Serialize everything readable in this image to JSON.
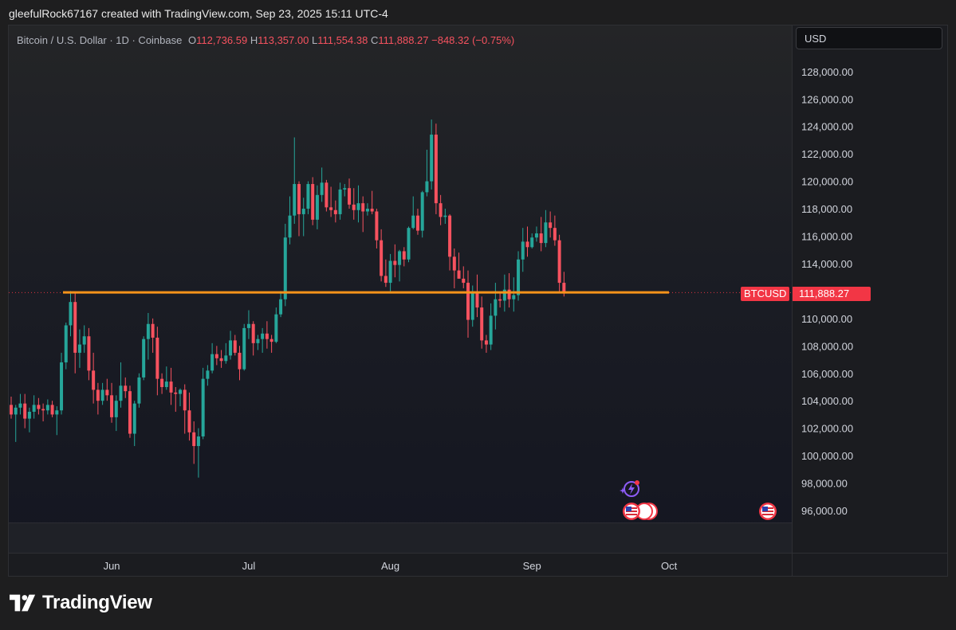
{
  "caption": "gleefulRock67167 created with TradingView.com, Sep 23, 2025 15:11 UTC-4",
  "legend": {
    "symbol": "Bitcoin / U.S. Dollar · 1D · Coinbase",
    "o_label": "O",
    "o_value": "112,736.59",
    "h_label": "H",
    "h_value": "113,357.00",
    "l_label": "L",
    "l_value": "111,554.38",
    "c_label": "C",
    "c_value": "111,888.27",
    "change": "−848.32 (−0.75%)"
  },
  "currency": "USD",
  "price_tag": {
    "symbol": "BTCUSD",
    "value": "111,888.27"
  },
  "brand": "TradingView",
  "colors": {
    "up": "#26a69a",
    "down": "#f7525f",
    "level": "#f7931a",
    "tag": "#f23645"
  },
  "icons": [
    "us-flag-icon",
    "lightning-event-icon"
  ],
  "chart_data": {
    "type": "candlestick",
    "symbol": "BTCUSD",
    "interval": "1D",
    "y_ticks": [
      "96,000.00",
      "98,000.00",
      "100,000.00",
      "102,000.00",
      "104,000.00",
      "106,000.00",
      "108,000.00",
      "110,000.00",
      "112,000.00",
      "114,000.00",
      "116,000.00",
      "118,000.00",
      "120,000.00",
      "122,000.00",
      "124,000.00",
      "126,000.00",
      "128,000.00"
    ],
    "x_ticks": [
      "Jun",
      "Jul",
      "Aug",
      "Sep",
      "Oct"
    ],
    "ylim": [
      94000,
      129500
    ],
    "horizontal_level": 111900,
    "last_price": 111888.27,
    "start_date": "2025-05-10",
    "candles": [
      [
        103700,
        104300,
        102700,
        103000
      ],
      [
        103000,
        103700,
        101000,
        103500
      ],
      [
        103500,
        104500,
        103000,
        103800
      ],
      [
        103800,
        104500,
        102000,
        102700
      ],
      [
        102700,
        103500,
        101700,
        103200
      ],
      [
        103200,
        104400,
        102700,
        103700
      ],
      [
        103700,
        104200,
        103000,
        103400
      ],
      [
        103400,
        103800,
        102500,
        103300
      ],
      [
        103300,
        104100,
        103000,
        103700
      ],
      [
        103700,
        104000,
        102800,
        103000
      ],
      [
        103000,
        103600,
        101500,
        103300
      ],
      [
        103300,
        107500,
        103000,
        106800
      ],
      [
        106800,
        109700,
        106300,
        109500
      ],
      [
        109500,
        112000,
        108700,
        111200
      ],
      [
        111200,
        111900,
        106000,
        107500
      ],
      [
        107500,
        109200,
        106400,
        108100
      ],
      [
        108100,
        109500,
        107500,
        108700
      ],
      [
        108700,
        109300,
        105500,
        106200
      ],
      [
        106200,
        107500,
        103800,
        104800
      ],
      [
        104800,
        105300,
        103000,
        104000
      ],
      [
        104000,
        105300,
        103700,
        104800
      ],
      [
        104800,
        105600,
        104000,
        104400
      ],
      [
        104400,
        105300,
        102400,
        102800
      ],
      [
        102800,
        104400,
        101800,
        104000
      ],
      [
        104000,
        106800,
        103500,
        105100
      ],
      [
        105100,
        105700,
        104200,
        104700
      ],
      [
        104700,
        105100,
        101300,
        101600
      ],
      [
        101600,
        104000,
        100700,
        103800
      ],
      [
        103800,
        106000,
        103500,
        105700
      ],
      [
        105700,
        108700,
        105500,
        108500
      ],
      [
        108500,
        110400,
        107000,
        109600
      ],
      [
        109600,
        110000,
        107500,
        108600
      ],
      [
        108600,
        109400,
        104400,
        105600
      ],
      [
        105600,
        106000,
        104500,
        105000
      ],
      [
        105000,
        106500,
        104800,
        105400
      ],
      [
        105400,
        106400,
        103700,
        104600
      ],
      [
        104600,
        105000,
        103200,
        104500
      ],
      [
        104500,
        104900,
        103600,
        104800
      ],
      [
        104800,
        105200,
        101600,
        103300
      ],
      [
        103300,
        104600,
        101100,
        101700
      ],
      [
        101700,
        102500,
        99400,
        100700
      ],
      [
        100700,
        102000,
        98400,
        101400
      ],
      [
        101400,
        106400,
        101200,
        105600
      ],
      [
        105600,
        106600,
        105100,
        106200
      ],
      [
        106200,
        108200,
        106000,
        107400
      ],
      [
        107400,
        108000,
        106600,
        107100
      ],
      [
        107100,
        107700,
        106400,
        106900
      ],
      [
        106900,
        108200,
        106700,
        107300
      ],
      [
        107300,
        109100,
        107000,
        108400
      ],
      [
        108400,
        108800,
        107300,
        107500
      ],
      [
        107500,
        108000,
        105500,
        106300
      ],
      [
        106300,
        109600,
        106200,
        109300
      ],
      [
        109300,
        110600,
        108500,
        109600
      ],
      [
        109600,
        109800,
        107300,
        108200
      ],
      [
        108200,
        108800,
        107700,
        108500
      ],
      [
        108500,
        109300,
        107500,
        108900
      ],
      [
        108900,
        109800,
        107800,
        108500
      ],
      [
        108500,
        108800,
        107500,
        108300
      ],
      [
        108300,
        110800,
        108200,
        110300
      ],
      [
        110300,
        112000,
        110100,
        111400
      ],
      [
        111400,
        116900,
        110900,
        115900
      ],
      [
        115900,
        118900,
        115400,
        117500
      ],
      [
        117500,
        123200,
        116900,
        119800
      ],
      [
        119800,
        120000,
        116000,
        117600
      ],
      [
        117600,
        118800,
        116000,
        118000
      ],
      [
        118000,
        120000,
        117600,
        119800
      ],
      [
        119800,
        120300,
        116800,
        117200
      ],
      [
        117200,
        119700,
        116500,
        119000
      ],
      [
        119000,
        121000,
        118500,
        119900
      ],
      [
        119900,
        120100,
        117800,
        118100
      ],
      [
        118100,
        119600,
        117400,
        117900
      ],
      [
        117900,
        118600,
        117000,
        117600
      ],
      [
        117600,
        119900,
        117200,
        119400
      ],
      [
        119400,
        119800,
        118900,
        119500
      ],
      [
        119500,
        120200,
        118000,
        118300
      ],
      [
        118300,
        119500,
        117200,
        117900
      ],
      [
        117900,
        119700,
        117000,
        118400
      ],
      [
        118400,
        118900,
        116300,
        117800
      ],
      [
        117800,
        118400,
        117500,
        118000
      ],
      [
        118000,
        119300,
        117600,
        117800
      ],
      [
        117800,
        118000,
        115100,
        115700
      ],
      [
        115700,
        116500,
        112700,
        113100
      ],
      [
        113100,
        114300,
        112300,
        112600
      ],
      [
        112600,
        114700,
        111900,
        114200
      ],
      [
        114200,
        115400,
        113000,
        113900
      ],
      [
        113900,
        115000,
        112700,
        114900
      ],
      [
        114900,
        115200,
        113800,
        114300
      ],
      [
        114300,
        116700,
        114100,
        116600
      ],
      [
        116600,
        118900,
        116500,
        117500
      ],
      [
        117500,
        118000,
        116100,
        116400
      ],
      [
        116400,
        119300,
        115900,
        119200
      ],
      [
        119200,
        122300,
        118900,
        120000
      ],
      [
        120000,
        124500,
        119400,
        123400
      ],
      [
        123400,
        124200,
        117600,
        118400
      ],
      [
        118400,
        119000,
        116800,
        117400
      ],
      [
        117400,
        118000,
        116900,
        117500
      ],
      [
        117500,
        117600,
        113500,
        114500
      ],
      [
        114500,
        115100,
        112200,
        113500
      ],
      [
        113500,
        114800,
        112900,
        112900
      ],
      [
        112900,
        113800,
        112200,
        112600
      ],
      [
        112600,
        113500,
        108600,
        109900
      ],
      [
        109900,
        112400,
        109400,
        111900
      ],
      [
        111900,
        113200,
        110100,
        110800
      ],
      [
        110800,
        111600,
        107800,
        108400
      ],
      [
        108400,
        108800,
        107500,
        108100
      ],
      [
        108100,
        111100,
        107700,
        110200
      ],
      [
        110200,
        112600,
        109200,
        111400
      ],
      [
        111400,
        111900,
        110800,
        111300
      ],
      [
        111300,
        113200,
        110500,
        112100
      ],
      [
        112100,
        113300,
        110800,
        111400
      ],
      [
        111400,
        113000,
        110500,
        111700
      ],
      [
        111700,
        114900,
        111300,
        114300
      ],
      [
        114300,
        116600,
        113400,
        115600
      ],
      [
        115600,
        116700,
        114500,
        115200
      ],
      [
        115200,
        116200,
        115100,
        115900
      ],
      [
        115900,
        116700,
        115600,
        116200
      ],
      [
        116200,
        117400,
        114900,
        115500
      ],
      [
        115500,
        117900,
        115200,
        117000
      ],
      [
        117000,
        117800,
        115900,
        116600
      ],
      [
        116600,
        117500,
        115300,
        115700
      ],
      [
        115700,
        116100,
        111900,
        112600
      ],
      [
        112600,
        113400,
        111600,
        111900
      ]
    ]
  }
}
